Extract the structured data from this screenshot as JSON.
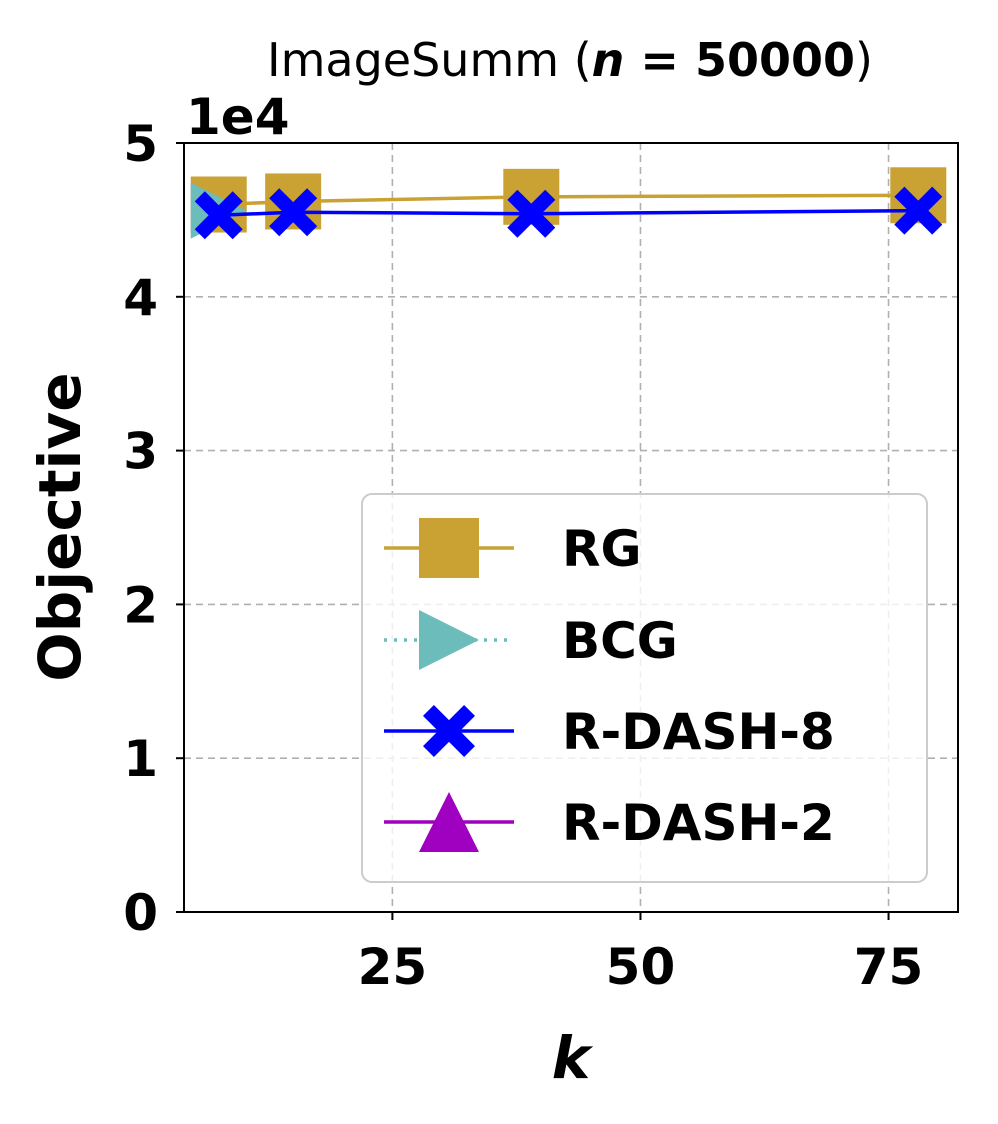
{
  "chart_data": {
    "type": "line",
    "title_prefix": "ImageSumm (",
    "title_n": "n",
    "title_eq": " = 50000",
    "title_suffix": ")",
    "xlabel": "k",
    "ylabel": "Objective",
    "y_scale_label": "1e4",
    "xlim": [
      4,
      82
    ],
    "ylim": [
      0,
      5
    ],
    "xticks": [
      25,
      50,
      75
    ],
    "xtick_labels": [
      "25",
      "50",
      "75"
    ],
    "yticks": [
      0,
      1,
      2,
      3,
      4,
      5
    ],
    "ytick_labels": [
      "0",
      "1",
      "2",
      "3",
      "4",
      "5"
    ],
    "grid": true,
    "legend_position": "lower right",
    "series": [
      {
        "name": "RG",
        "color": "#C9A233",
        "marker": "square",
        "line_style": "solid",
        "points": [
          [
            7.5,
            4.6
          ],
          [
            15,
            4.62
          ],
          [
            39,
            4.65
          ],
          [
            78,
            4.66
          ]
        ]
      },
      {
        "name": "BCG",
        "color": "#6CBCBC",
        "marker": "triangle-right",
        "line_style": "dotted",
        "points": [
          [
            7.5,
            4.56
          ]
        ]
      },
      {
        "name": "R-DASH-8",
        "color": "#0000FF",
        "marker": "x-filled",
        "line_style": "solid",
        "points": [
          [
            7.5,
            4.53
          ],
          [
            15,
            4.55
          ],
          [
            39,
            4.54
          ],
          [
            78,
            4.56
          ]
        ]
      },
      {
        "name": "R-DASH-2",
        "color": "#A000C0",
        "marker": "triangle-up",
        "line_style": "solid",
        "points": []
      }
    ]
  }
}
